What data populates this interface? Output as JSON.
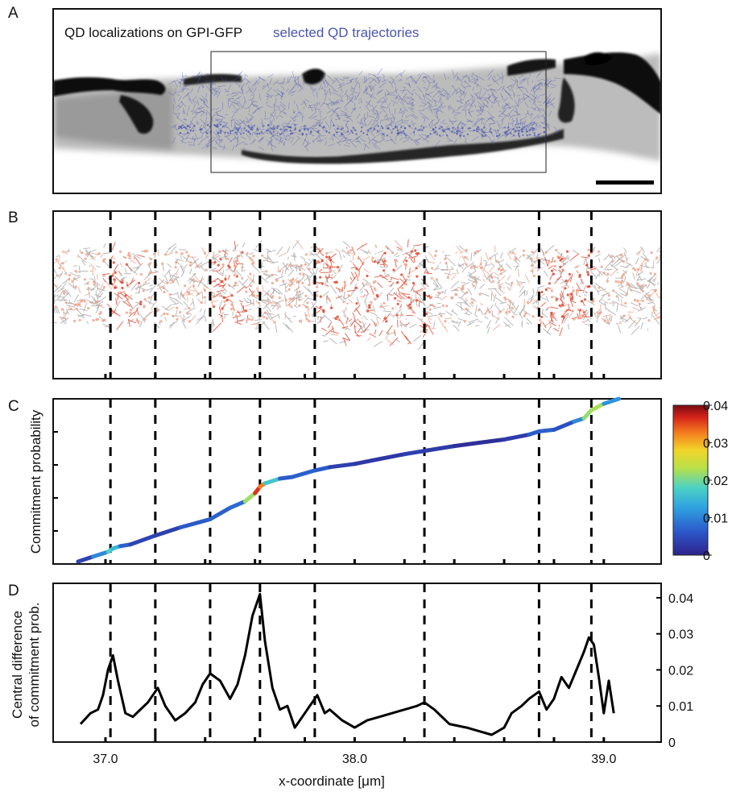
{
  "figure": {
    "panel_labels": [
      "A",
      "B",
      "C",
      "D"
    ],
    "legend_localizations": "QD localizations on GPI-GFP",
    "legend_trajectories": "selected QD trajectories",
    "x_axis_label": "x-coordinate [μm]",
    "c_y_label": "Commitment probability",
    "d_y_label_line1": "Central difference",
    "d_y_label_line2": "of commitment prob."
  },
  "colors": {
    "trajectories": "#4a55b0",
    "gray_tracks": "#a8a8a8",
    "high_commitment": "#e0472f",
    "low_commitment": "#efa48c",
    "line": "#000000"
  },
  "chart_data": [
    {
      "panel": "B",
      "type": "scatter",
      "x_range": [
        36.79,
        39.23
      ],
      "boundaries": [
        37.02,
        37.2,
        37.42,
        37.62,
        37.84,
        38.28,
        38.74,
        38.95
      ]
    },
    {
      "panel": "C",
      "type": "line",
      "x": [
        36.89,
        36.95,
        37.01,
        37.03,
        37.06,
        37.1,
        37.2,
        37.3,
        37.42,
        37.5,
        37.56,
        37.6,
        37.62,
        37.64,
        37.7,
        37.75,
        37.84,
        37.9,
        38.0,
        38.1,
        38.2,
        38.28,
        38.4,
        38.5,
        38.6,
        38.7,
        38.74,
        38.8,
        38.88,
        38.92,
        38.95,
        39.0,
        39.06
      ],
      "y": [
        0.0,
        0.03,
        0.06,
        0.08,
        0.095,
        0.105,
        0.16,
        0.21,
        0.26,
        0.33,
        0.37,
        0.42,
        0.46,
        0.48,
        0.51,
        0.52,
        0.56,
        0.58,
        0.6,
        0.63,
        0.66,
        0.68,
        0.71,
        0.73,
        0.75,
        0.78,
        0.8,
        0.81,
        0.86,
        0.88,
        0.93,
        0.97,
        1.0
      ],
      "color_values": [
        0.002,
        0.006,
        0.015,
        0.02,
        0.01,
        0.004,
        0.004,
        0.003,
        0.01,
        0.004,
        0.012,
        0.032,
        0.04,
        0.025,
        0.008,
        0.005,
        0.009,
        0.004,
        0.003,
        0.002,
        0.003,
        0.004,
        0.002,
        0.001,
        0.002,
        0.004,
        0.009,
        0.005,
        0.006,
        0.015,
        0.028,
        0.017,
        0.006
      ],
      "colorbar": {
        "min": 0,
        "max": 0.04,
        "ticks": [
          "0",
          "0.01",
          "0.02",
          "0.03",
          "0.04"
        ]
      },
      "boundaries": [
        37.02,
        37.2,
        37.42,
        37.62,
        37.84,
        38.28,
        38.74,
        38.95
      ]
    },
    {
      "panel": "D",
      "type": "line",
      "x": [
        36.9,
        36.94,
        36.97,
        36.99,
        37.01,
        37.03,
        37.05,
        37.08,
        37.11,
        37.14,
        37.17,
        37.19,
        37.21,
        37.24,
        37.28,
        37.32,
        37.36,
        37.39,
        37.42,
        37.46,
        37.5,
        37.53,
        37.56,
        37.59,
        37.62,
        37.64,
        37.67,
        37.7,
        37.73,
        37.76,
        37.79,
        37.82,
        37.85,
        37.88,
        37.9,
        37.95,
        38.0,
        38.05,
        38.1,
        38.15,
        38.2,
        38.25,
        38.28,
        38.32,
        38.38,
        38.45,
        38.5,
        38.55,
        38.6,
        38.63,
        38.67,
        38.7,
        38.74,
        38.77,
        38.8,
        38.83,
        38.86,
        38.89,
        38.92,
        38.94,
        38.96,
        38.98,
        39.0,
        39.02,
        39.04
      ],
      "y": [
        0.005,
        0.008,
        0.009,
        0.013,
        0.02,
        0.024,
        0.017,
        0.008,
        0.007,
        0.009,
        0.011,
        0.013,
        0.015,
        0.01,
        0.006,
        0.008,
        0.011,
        0.016,
        0.019,
        0.017,
        0.012,
        0.016,
        0.024,
        0.035,
        0.041,
        0.028,
        0.015,
        0.009,
        0.01,
        0.004,
        0.007,
        0.01,
        0.013,
        0.008,
        0.009,
        0.006,
        0.004,
        0.006,
        0.007,
        0.008,
        0.009,
        0.01,
        0.011,
        0.009,
        0.005,
        0.004,
        0.003,
        0.002,
        0.004,
        0.008,
        0.01,
        0.012,
        0.014,
        0.009,
        0.012,
        0.018,
        0.015,
        0.02,
        0.025,
        0.029,
        0.027,
        0.018,
        0.008,
        0.017,
        0.008
      ],
      "xlim": [
        36.79,
        39.23
      ],
      "ylim": [
        0,
        0.044
      ],
      "x_ticks": [
        "37.0",
        "38.0",
        "39.0"
      ],
      "y_ticks": [
        "0",
        "0.01",
        "0.02",
        "0.03",
        "0.04"
      ],
      "boundaries": [
        37.02,
        37.2,
        37.42,
        37.62,
        37.84,
        38.28,
        38.74,
        38.95
      ]
    }
  ]
}
